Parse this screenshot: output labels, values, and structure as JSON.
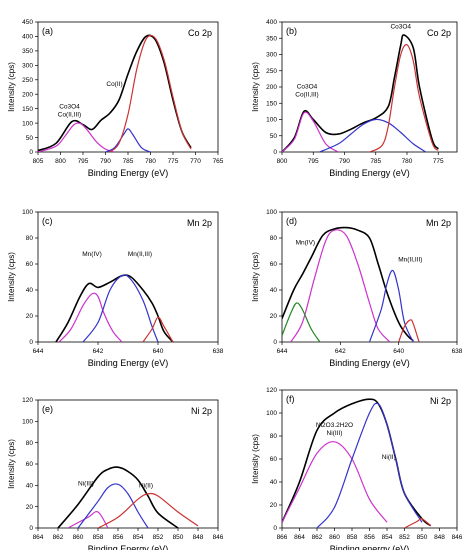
{
  "chart_data": [
    {
      "type": "line",
      "panel_label": "(a)",
      "title": "Co 2p",
      "xlabel": "Binding Energy (eV)",
      "ylabel": "Intensity (cps)",
      "xlim": [
        805,
        765
      ],
      "ylim": [
        0,
        450
      ],
      "xticks": [
        805,
        800,
        795,
        790,
        785,
        780,
        775,
        770,
        765
      ],
      "yticks": [
        0,
        50,
        100,
        150,
        200,
        250,
        300,
        350,
        400,
        450
      ],
      "annotations": [
        {
          "text": "Co3O4",
          "sub": "Co(II,III)",
          "x": 798,
          "y": 150
        },
        {
          "text": "Co(II)",
          "x": 788,
          "y": 228
        }
      ],
      "series": [
        {
          "color": "#000000",
          "x": [
            805,
            801,
            797.5,
            795,
            793,
            791,
            789,
            787,
            785,
            783,
            781,
            779,
            777,
            775,
            773,
            771
          ],
          "y": [
            5,
            30,
            105,
            95,
            78,
            110,
            135,
            180,
            270,
            350,
            400,
            390,
            310,
            180,
            70,
            15
          ]
        },
        {
          "color": "#cc33cc",
          "x": [
            805,
            801,
            799,
            797,
            795.5,
            794,
            792,
            790,
            788
          ],
          "y": [
            0,
            20,
            55,
            95,
            98,
            75,
            35,
            10,
            0
          ]
        },
        {
          "color": "#3333cc",
          "x": [
            790,
            788,
            786,
            785,
            784,
            782,
            780
          ],
          "y": [
            0,
            15,
            60,
            80,
            62,
            15,
            0
          ]
        },
        {
          "color": "#cc3333",
          "x": [
            789,
            787,
            785,
            783,
            781,
            779,
            777,
            775,
            773,
            771
          ],
          "y": [
            0,
            30,
            130,
            290,
            390,
            395,
            320,
            190,
            70,
            10
          ]
        }
      ]
    },
    {
      "type": "line",
      "panel_label": "(b)",
      "title": "Co 2p",
      "xlabel": "Binding Energy (eV)",
      "ylabel": "Intensity (cps)",
      "xlim": [
        800,
        772
      ],
      "ylim": [
        0,
        400
      ],
      "xticks": [
        800,
        795,
        790,
        785,
        780,
        775
      ],
      "yticks": [
        0,
        50,
        100,
        150,
        200,
        250,
        300,
        350,
        400
      ],
      "annotations": [
        {
          "text": "Co3O4",
          "sub": "Co(II,III)",
          "x": 796,
          "y": 195
        },
        {
          "text": "Co3O4",
          "x": 781,
          "y": 380
        }
      ],
      "series": [
        {
          "color": "#000000",
          "x": [
            800,
            798,
            796.5,
            795,
            793,
            791,
            789,
            787,
            785,
            783,
            782,
            781,
            780.5,
            779,
            778,
            776,
            775
          ],
          "y": [
            0,
            45,
            125,
            100,
            60,
            55,
            70,
            90,
            105,
            140,
            230,
            330,
            360,
            320,
            200,
            40,
            10
          ]
        },
        {
          "color": "#cc33cc",
          "x": [
            800,
            798,
            796.5,
            795,
            793,
            791
          ],
          "y": [
            0,
            40,
            120,
            95,
            25,
            0
          ]
        },
        {
          "color": "#3333cc",
          "x": [
            794,
            791,
            789,
            787,
            785,
            783,
            781,
            779,
            777
          ],
          "y": [
            0,
            25,
            55,
            85,
            100,
            90,
            60,
            25,
            0
          ]
        },
        {
          "color": "#cc3333",
          "x": [
            786,
            784,
            783,
            782,
            781,
            780,
            779,
            778,
            776,
            775
          ],
          "y": [
            0,
            20,
            80,
            200,
            300,
            330,
            280,
            170,
            30,
            5
          ]
        }
      ]
    },
    {
      "type": "line",
      "panel_label": "(c)",
      "title": "Mn 2p",
      "xlabel": "Binding Energy (eV)",
      "ylabel": "Intensity (cps)",
      "xlim": [
        644,
        638
      ],
      "ylim": [
        0,
        100
      ],
      "xticks": [
        644,
        642,
        640,
        638
      ],
      "yticks": [
        0,
        20,
        40,
        60,
        80,
        100
      ],
      "annotations": [
        {
          "text": "Mn(IV)",
          "x": 642.2,
          "y": 66
        },
        {
          "text": "Mn(II,III)",
          "x": 640.6,
          "y": 66
        }
      ],
      "series": [
        {
          "color": "#000000",
          "x": [
            643.4,
            643,
            642.6,
            642.3,
            642,
            641.6,
            641.2,
            640.9,
            640.5,
            640.2,
            640,
            639.8,
            639.5
          ],
          "y": [
            0,
            15,
            35,
            45,
            42,
            46,
            51,
            50,
            40,
            30,
            20,
            8,
            0
          ]
        },
        {
          "color": "#cc33cc",
          "x": [
            643.3,
            642.9,
            642.5,
            642.2,
            642,
            641.8,
            641.5,
            641.2
          ],
          "y": [
            0,
            10,
            28,
            37,
            35,
            22,
            8,
            0
          ]
        },
        {
          "color": "#3333cc",
          "x": [
            642.5,
            642,
            641.6,
            641.2,
            640.9,
            640.5,
            640.2,
            640
          ],
          "y": [
            0,
            15,
            40,
            51,
            48,
            32,
            12,
            0
          ]
        },
        {
          "color": "#cc3333",
          "x": [
            640.5,
            640.2,
            640,
            639.8,
            639.6,
            639.5
          ],
          "y": [
            0,
            10,
            19,
            12,
            4,
            0
          ]
        }
      ]
    },
    {
      "type": "line",
      "panel_label": "(d)",
      "title": "Mn 2p",
      "xlabel": "Binding Energy (eV)",
      "ylabel": "Intensity (cps)",
      "xlim": [
        644,
        638
      ],
      "ylim": [
        0,
        100
      ],
      "xticks": [
        644,
        642,
        640,
        638
      ],
      "yticks": [
        0,
        20,
        40,
        60,
        80,
        100
      ],
      "annotations": [
        {
          "text": "Mn(IV)",
          "x": 643.2,
          "y": 75
        },
        {
          "text": "Mn(II,III)",
          "x": 639.6,
          "y": 62
        }
      ],
      "series": [
        {
          "color": "#000000",
          "x": [
            644,
            643.6,
            643.3,
            643,
            642.6,
            642.2,
            641.8,
            641.4,
            641,
            640.7,
            640.4,
            640,
            639.7,
            639.5
          ],
          "y": [
            18,
            40,
            52,
            65,
            82,
            87,
            88,
            86,
            80,
            60,
            38,
            15,
            5,
            1
          ]
        },
        {
          "color": "#cc33cc",
          "x": [
            643.7,
            643.3,
            642.9,
            642.5,
            642.2,
            641.8,
            641.4,
            641,
            640.7,
            640.3
          ],
          "y": [
            0,
            15,
            48,
            78,
            86,
            82,
            60,
            30,
            10,
            0
          ]
        },
        {
          "color": "#3333cc",
          "x": [
            641,
            640.6,
            640.4,
            640.2,
            640,
            639.8,
            639.5
          ],
          "y": [
            0,
            25,
            45,
            55,
            40,
            15,
            0
          ]
        },
        {
          "color": "#228822",
          "x": [
            644,
            643.7,
            643.5,
            643.3,
            643,
            642.7
          ],
          "y": [
            5,
            22,
            30,
            25,
            10,
            0
          ]
        },
        {
          "color": "#cc3333",
          "x": [
            640,
            639.8,
            639.6,
            639.5,
            639.3
          ],
          "y": [
            0,
            12,
            17,
            14,
            0
          ]
        }
      ]
    },
    {
      "type": "line",
      "panel_label": "(e)",
      "title": "Ni 2p",
      "xlabel": "Binding Energy (eV)",
      "ylabel": "Intensity (cps)",
      "xlim": [
        864,
        846
      ],
      "ylim": [
        0,
        120
      ],
      "xticks": [
        864,
        862,
        860,
        858,
        856,
        854,
        852,
        850,
        848,
        846
      ],
      "yticks": [
        0,
        20,
        40,
        60,
        80,
        100,
        120
      ],
      "annotations": [
        {
          "text": "Ni(III)",
          "x": 859.2,
          "y": 40
        },
        {
          "text": "Ni(II)",
          "x": 853.2,
          "y": 38
        }
      ],
      "series": [
        {
          "color": "#000000",
          "x": [
            862,
            860,
            858,
            857,
            856,
            855,
            854,
            853,
            852,
            850
          ],
          "y": [
            0,
            22,
            48,
            55,
            57,
            53,
            45,
            30,
            14,
            0
          ]
        },
        {
          "color": "#cc33cc",
          "x": [
            861,
            859,
            858,
            857
          ],
          "y": [
            0,
            10,
            15,
            0
          ]
        },
        {
          "color": "#3333cc",
          "x": [
            860,
            858,
            857,
            856,
            855,
            854,
            853
          ],
          "y": [
            0,
            25,
            38,
            41,
            32,
            15,
            0
          ]
        },
        {
          "color": "#cc3333",
          "x": [
            858,
            856,
            854,
            853,
            852,
            850,
            848
          ],
          "y": [
            0,
            10,
            27,
            32,
            30,
            15,
            2
          ]
        }
      ]
    },
    {
      "type": "line",
      "panel_label": "(f)",
      "title": "Ni 2p",
      "xlabel": "Binding energy (eV)",
      "ylabel": "Intensity (cps)",
      "xlim": [
        866,
        846
      ],
      "ylim": [
        0,
        120
      ],
      "xticks": [
        866,
        864,
        862,
        860,
        858,
        856,
        854,
        852,
        850,
        848,
        846
      ],
      "yticks": [
        0,
        20,
        40,
        60,
        80,
        100,
        120
      ],
      "annotations": [
        {
          "text": "Ni2O3.2H2O",
          "sub": "Ni(III)",
          "x": 860,
          "y": 88
        },
        {
          "text": "Ni(II)",
          "x": 853.8,
          "y": 60
        }
      ],
      "series": [
        {
          "color": "#000000",
          "x": [
            866,
            864,
            862,
            860,
            858,
            856,
            855,
            854,
            853,
            852,
            850,
            849
          ],
          "y": [
            5,
            40,
            85,
            100,
            108,
            112,
            108,
            90,
            60,
            30,
            8,
            2
          ]
        },
        {
          "color": "#cc33cc",
          "x": [
            866,
            864,
            862,
            860,
            858,
            856,
            854
          ],
          "y": [
            5,
            35,
            65,
            75,
            60,
            25,
            5
          ]
        },
        {
          "color": "#3333cc",
          "x": [
            862,
            860,
            858,
            856,
            855,
            854,
            853,
            852,
            850
          ],
          "y": [
            0,
            18,
            60,
            100,
            108,
            90,
            60,
            30,
            5
          ]
        },
        {
          "color": "#cc3333",
          "x": [
            852,
            850.5,
            850,
            849
          ],
          "y": [
            0,
            6,
            8,
            2
          ]
        }
      ]
    }
  ]
}
